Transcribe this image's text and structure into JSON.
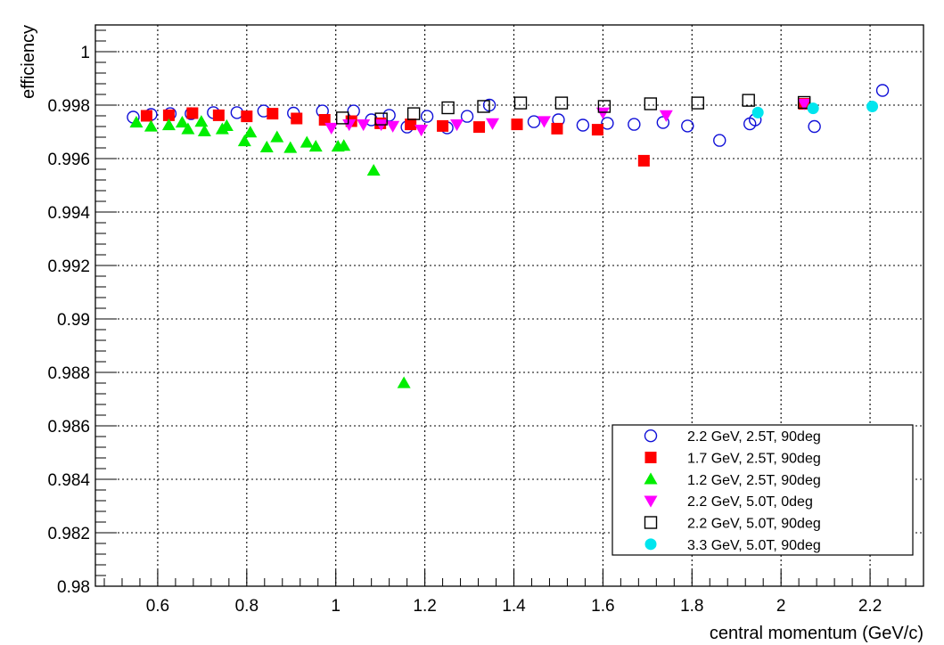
{
  "chart_data": {
    "type": "scatter",
    "title": "",
    "xlabel": "central momentum (GeV/c)",
    "ylabel": "efficiency",
    "xlim": [
      0.46,
      2.32
    ],
    "ylim": [
      0.98,
      1.001
    ],
    "xticks": [
      "0.6",
      "0.8",
      "1",
      "1.2",
      "1.4",
      "1.6",
      "1.8",
      "2",
      "2.2"
    ],
    "yticks": [
      "0.98",
      "0.982",
      "0.984",
      "0.986",
      "0.988",
      "0.99",
      "0.992",
      "0.994",
      "0.996",
      "0.998",
      "1"
    ],
    "grid": true,
    "legend_position": "bottom-right",
    "series": [
      {
        "name": "2.2 GeV, 2.5T, 90deg",
        "marker": "open-circle",
        "color": "#1010d8",
        "points": [
          [
            0.545,
            0.99755
          ],
          [
            0.585,
            0.99765
          ],
          [
            0.628,
            0.99768
          ],
          [
            0.675,
            0.99768
          ],
          [
            0.725,
            0.99772
          ],
          [
            0.778,
            0.99772
          ],
          [
            0.838,
            0.99778
          ],
          [
            0.905,
            0.9977
          ],
          [
            0.97,
            0.99778
          ],
          [
            1.04,
            0.99778
          ],
          [
            1.08,
            0.99745
          ],
          [
            1.12,
            0.99762
          ],
          [
            1.16,
            0.99718
          ],
          [
            1.205,
            0.99758
          ],
          [
            1.25,
            0.99715
          ],
          [
            1.295,
            0.99758
          ],
          [
            1.345,
            0.998
          ],
          [
            1.445,
            0.99738
          ],
          [
            1.5,
            0.99745
          ],
          [
            1.555,
            0.99725
          ],
          [
            1.61,
            0.99732
          ],
          [
            1.67,
            0.99728
          ],
          [
            1.735,
            0.99735
          ],
          [
            1.79,
            0.99722
          ],
          [
            1.862,
            0.99668
          ],
          [
            1.93,
            0.9973
          ],
          [
            1.942,
            0.99745
          ],
          [
            2.075,
            0.9972
          ],
          [
            2.228,
            0.99855
          ]
        ]
      },
      {
        "name": "1.7 GeV, 2.5T, 90deg",
        "marker": "filled-square",
        "color": "#ff0000",
        "points": [
          [
            0.575,
            0.9976
          ],
          [
            0.625,
            0.99762
          ],
          [
            0.678,
            0.9977
          ],
          [
            0.737,
            0.99762
          ],
          [
            0.8,
            0.99758
          ],
          [
            0.858,
            0.99768
          ],
          [
            0.912,
            0.9975
          ],
          [
            0.975,
            0.99745
          ],
          [
            1.035,
            0.9974
          ],
          [
            1.1,
            0.99732
          ],
          [
            1.168,
            0.99728
          ],
          [
            1.24,
            0.99722
          ],
          [
            1.322,
            0.99718
          ],
          [
            1.407,
            0.99728
          ],
          [
            1.497,
            0.99712
          ],
          [
            1.588,
            0.99708
          ],
          [
            1.692,
            0.99592
          ],
          [
            2.052,
            0.99805
          ]
        ]
      },
      {
        "name": "1.2 GeV, 2.5T, 90deg",
        "marker": "filled-triangle-up",
        "color": "#00ee00",
        "points": [
          [
            0.552,
            0.99735
          ],
          [
            0.585,
            0.9972
          ],
          [
            0.625,
            0.99725
          ],
          [
            0.655,
            0.99735
          ],
          [
            0.668,
            0.9971
          ],
          [
            0.698,
            0.99738
          ],
          [
            0.705,
            0.99702
          ],
          [
            0.745,
            0.9971
          ],
          [
            0.755,
            0.99722
          ],
          [
            0.795,
            0.99665
          ],
          [
            0.808,
            0.99698
          ],
          [
            0.845,
            0.99642
          ],
          [
            0.868,
            0.9968
          ],
          [
            0.898,
            0.9964
          ],
          [
            0.935,
            0.9966
          ],
          [
            0.955,
            0.99645
          ],
          [
            1.005,
            0.99645
          ],
          [
            1.018,
            0.99648
          ],
          [
            1.085,
            0.99555
          ],
          [
            1.153,
            0.9876
          ]
        ]
      },
      {
        "name": "2.2 GeV, 5.0T, 0deg",
        "marker": "filled-triangle-down",
        "color": "#ff00ff",
        "points": [
          [
            0.99,
            0.99715
          ],
          [
            1.03,
            0.99728
          ],
          [
            1.062,
            0.99728
          ],
          [
            1.102,
            0.99728
          ],
          [
            1.128,
            0.99722
          ],
          [
            1.192,
            0.99708
          ],
          [
            1.272,
            0.99728
          ],
          [
            1.352,
            0.99732
          ],
          [
            1.468,
            0.9974
          ],
          [
            1.6,
            0.99772
          ],
          [
            1.742,
            0.99762
          ],
          [
            2.052,
            0.99805
          ]
        ]
      },
      {
        "name": "2.2 GeV, 5.0T, 90deg",
        "marker": "open-square",
        "color": "#000000",
        "points": [
          [
            1.015,
            0.99752
          ],
          [
            1.102,
            0.99748
          ],
          [
            1.175,
            0.99768
          ],
          [
            1.252,
            0.9979
          ],
          [
            1.332,
            0.99795
          ],
          [
            1.415,
            0.99808
          ],
          [
            1.507,
            0.99808
          ],
          [
            1.603,
            0.99795
          ],
          [
            1.707,
            0.99805
          ],
          [
            1.813,
            0.99808
          ],
          [
            1.927,
            0.99818
          ],
          [
            2.052,
            0.9981
          ]
        ]
      },
      {
        "name": "3.3 GeV, 5.0T, 90deg",
        "marker": "filled-circle",
        "color": "#00e5ee",
        "points": [
          [
            1.948,
            0.99772
          ],
          [
            2.072,
            0.99788
          ],
          [
            2.205,
            0.99795
          ]
        ]
      }
    ]
  }
}
